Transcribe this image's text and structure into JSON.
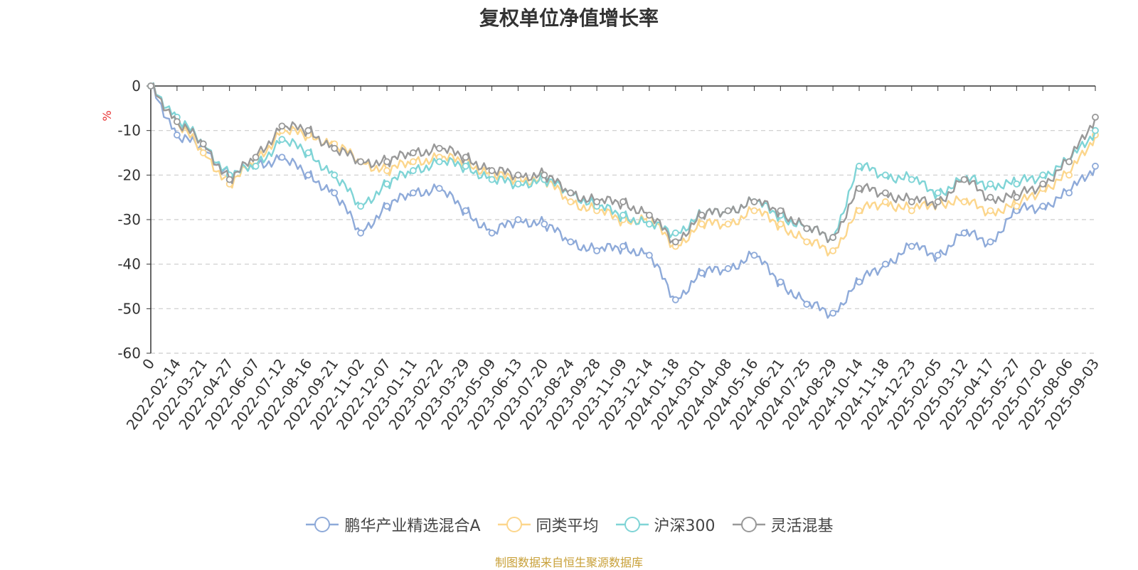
{
  "chart_data": {
    "type": "line",
    "title": "复权单位净值增长率",
    "ylabel": "%",
    "ylim": [
      -60,
      0
    ],
    "yticks": [
      0,
      -10,
      -20,
      -30,
      -40,
      -50,
      -60
    ],
    "grid": true,
    "legend_position": "bottom",
    "x_first_label": "0",
    "x_labels": [
      "2022-02-14",
      "2022-03-21",
      "2022-04-27",
      "2022-06-07",
      "2022-07-12",
      "2022-08-16",
      "2022-09-21",
      "2022-11-02",
      "2022-12-07",
      "2023-01-11",
      "2023-02-22",
      "2023-03-29",
      "2023-05-09",
      "2023-06-13",
      "2023-07-20",
      "2023-08-24",
      "2023-09-28",
      "2023-11-09",
      "2023-12-14",
      "2024-01-18",
      "2024-03-01",
      "2024-04-08",
      "2024-05-16",
      "2024-06-21",
      "2024-07-25",
      "2024-08-29",
      "2024-10-14",
      "2024-11-18",
      "2024-12-23",
      "2025-02-05",
      "2025-03-12",
      "2025-04-17",
      "2025-05-27",
      "2025-07-02",
      "2025-08-06",
      "2025-09-03"
    ],
    "x": [
      "0",
      "2022-02-14",
      "2022-03-21",
      "2022-04-27",
      "2022-06-07",
      "2022-07-12",
      "2022-08-16",
      "2022-09-21",
      "2022-11-02",
      "2022-12-07",
      "2023-01-11",
      "2023-02-22",
      "2023-03-29",
      "2023-05-09",
      "2023-06-13",
      "2023-07-20",
      "2023-08-24",
      "2023-09-28",
      "2023-11-09",
      "2023-12-14",
      "2024-01-18",
      "2024-03-01",
      "2024-04-08",
      "2024-05-16",
      "2024-06-21",
      "2024-07-25",
      "2024-08-29",
      "2024-10-14",
      "2024-11-18",
      "2024-12-23",
      "2025-02-05",
      "2025-03-12",
      "2025-04-17",
      "2025-05-27",
      "2025-07-02",
      "2025-08-06",
      "2025-09-03"
    ],
    "series": [
      {
        "name": "鹏华产业精选混合A",
        "color": "#8eaad9",
        "values": [
          0,
          -11,
          -14,
          -20,
          -18,
          -16,
          -20,
          -24,
          -33,
          -27,
          -24,
          -23,
          -28,
          -33,
          -30,
          -31,
          -35,
          -37,
          -36,
          -38,
          -48,
          -42,
          -41,
          -38,
          -44,
          -49,
          -51,
          -44,
          -40,
          -36,
          -38,
          -33,
          -35,
          -28,
          -27,
          -24,
          -18
        ]
      },
      {
        "name": "同类平均",
        "color": "#fcd68c",
        "values": [
          0,
          -8,
          -15,
          -22,
          -17,
          -10,
          -11,
          -13,
          -17,
          -19,
          -17,
          -16,
          -17,
          -20,
          -21,
          -21,
          -26,
          -28,
          -30,
          -30,
          -36,
          -31,
          -31,
          -28,
          -31,
          -35,
          -37,
          -28,
          -26,
          -28,
          -26,
          -26,
          -28,
          -27,
          -23,
          -20,
          -11
        ]
      },
      {
        "name": "沪深300",
        "color": "#7fd4d6",
        "values": [
          0,
          -7,
          -13,
          -20,
          -18,
          -12,
          -15,
          -20,
          -27,
          -22,
          -19,
          -17,
          -18,
          -21,
          -22,
          -21,
          -24,
          -27,
          -29,
          -31,
          -33,
          -29,
          -28,
          -26,
          -29,
          -32,
          -34,
          -18,
          -20,
          -21,
          -24,
          -21,
          -22,
          -22,
          -20,
          -17,
          -10
        ]
      },
      {
        "name": "灵活混基",
        "color": "#999999",
        "values": [
          0,
          -8,
          -13,
          -21,
          -16,
          -9,
          -10,
          -14,
          -17,
          -17,
          -15,
          -14,
          -16,
          -19,
          -20,
          -20,
          -24,
          -26,
          -26,
          -29,
          -35,
          -29,
          -28,
          -26,
          -28,
          -32,
          -34,
          -23,
          -24,
          -26,
          -26,
          -21,
          -25,
          -25,
          -22,
          -17,
          -7
        ]
      }
    ]
  },
  "source_text": "制图数据来自恒生聚源数据库",
  "source_color": "#c8a038",
  "ylabel_color": "#e83030"
}
